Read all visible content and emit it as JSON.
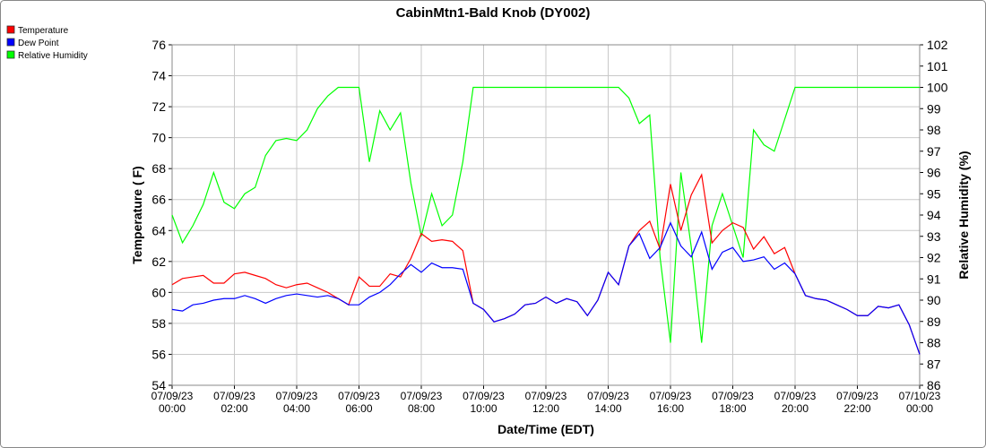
{
  "chart_data": {
    "type": "line",
    "title": "CabinMtn1-Bald Knob (DY002)",
    "x_label": "Date/Time (EDT)",
    "y_label": "Temperature ( F)",
    "y2_label": "Relative Humidity (%)",
    "x": [
      0,
      20,
      40,
      60,
      80,
      100,
      120,
      140,
      160,
      180,
      200,
      220,
      240,
      260,
      280,
      300,
      320,
      340,
      360,
      380,
      400,
      420,
      440,
      460,
      480,
      500,
      520,
      540,
      560,
      580,
      600,
      620,
      640,
      660,
      680,
      700,
      720,
      740,
      760,
      780,
      800,
      820,
      840,
      860,
      880,
      900,
      920,
      940,
      960,
      980,
      1000,
      1020,
      1040,
      1060,
      1080,
      1100,
      1120,
      1140,
      1160,
      1180,
      1200,
      1220,
      1240,
      1260,
      1280,
      1300,
      1320,
      1340,
      1360,
      1380,
      1400,
      1420,
      1440
    ],
    "xlim": [
      0,
      1440
    ],
    "xticks": [
      {
        "value": 0,
        "label": "07/09/23 00:00"
      },
      {
        "value": 120,
        "label": "07/09/23 02:00"
      },
      {
        "value": 240,
        "label": "07/09/23 04:00"
      },
      {
        "value": 360,
        "label": "07/09/23 06:00"
      },
      {
        "value": 480,
        "label": "07/09/23 08:00"
      },
      {
        "value": 600,
        "label": "07/09/23 10:00"
      },
      {
        "value": 720,
        "label": "07/09/23 12:00"
      },
      {
        "value": 840,
        "label": "07/09/23 14:00"
      },
      {
        "value": 960,
        "label": "07/09/23 16:00"
      },
      {
        "value": 1080,
        "label": "07/09/23 18:00"
      },
      {
        "value": 1200,
        "label": "07/09/23 20:00"
      },
      {
        "value": 1320,
        "label": "07/09/23 22:00"
      },
      {
        "value": 1440,
        "label": "07/10/23 00:00"
      }
    ],
    "ylim": [
      54,
      76
    ],
    "yticks": [
      54,
      56,
      58,
      60,
      62,
      64,
      66,
      68,
      70,
      72,
      74,
      76
    ],
    "y2lim": [
      86,
      102
    ],
    "y2ticks": [
      86,
      87,
      88,
      89,
      90,
      91,
      92,
      93,
      94,
      95,
      96,
      97,
      98,
      99,
      100,
      101,
      102
    ],
    "grid": true,
    "legend": "top-left",
    "series": [
      {
        "name": "Temperature",
        "color": "#ff0000",
        "values": [
          60.5,
          60.9,
          61.0,
          61.1,
          60.6,
          60.6,
          61.2,
          61.3,
          61.1,
          60.9,
          60.5,
          60.3,
          60.5,
          60.6,
          60.3,
          60.0,
          59.6,
          59.2,
          61.0,
          60.4,
          60.4,
          61.2,
          61.0,
          62.2,
          63.8,
          63.3,
          63.4,
          63.3,
          62.7,
          59.3,
          58.9,
          58.1,
          58.3,
          58.6,
          59.2,
          59.3,
          59.7,
          59.3,
          59.6,
          59.4,
          58.5,
          59.5,
          61.3,
          60.5,
          63.0,
          64.0,
          64.6,
          62.8,
          67.0,
          64.0,
          66.3,
          67.6,
          63.2,
          64.0,
          64.5,
          64.2,
          62.8,
          63.6,
          62.5,
          62.9,
          61.2,
          59.8,
          59.6,
          59.5,
          59.2,
          58.9,
          58.5,
          58.5,
          59.1,
          59.0,
          59.2,
          57.9,
          56.0
        ]
      },
      {
        "name": "Dew Point",
        "color": "#0000ff",
        "values": [
          58.9,
          58.8,
          59.2,
          59.3,
          59.5,
          59.6,
          59.6,
          59.8,
          59.6,
          59.3,
          59.6,
          59.8,
          59.9,
          59.8,
          59.7,
          59.8,
          59.6,
          59.2,
          59.2,
          59.7,
          60.0,
          60.5,
          61.2,
          61.8,
          61.3,
          61.9,
          61.6,
          61.6,
          61.5,
          59.3,
          58.9,
          58.1,
          58.3,
          58.6,
          59.2,
          59.3,
          59.7,
          59.3,
          59.6,
          59.4,
          58.5,
          59.5,
          61.3,
          60.5,
          63.0,
          63.8,
          62.2,
          62.9,
          64.5,
          63.0,
          62.3,
          63.9,
          61.5,
          62.6,
          62.9,
          62.0,
          62.1,
          62.3,
          61.5,
          61.9,
          61.2,
          59.8,
          59.6,
          59.5,
          59.2,
          58.9,
          58.5,
          58.5,
          59.1,
          59.0,
          59.2,
          57.9,
          56.0
        ]
      },
      {
        "name": "Relative Humidity",
        "color": "#00ff00",
        "axis": "y2",
        "values": [
          94.0,
          92.7,
          93.5,
          94.5,
          96.0,
          94.6,
          94.3,
          95.0,
          95.3,
          96.8,
          97.5,
          97.6,
          97.5,
          98.0,
          99.0,
          99.6,
          100,
          100,
          100,
          96.5,
          98.9,
          98.0,
          98.8,
          95.5,
          93.0,
          95.0,
          93.5,
          94.0,
          96.5,
          100,
          100,
          100,
          100,
          100,
          100,
          100,
          100,
          100,
          100,
          100,
          100,
          100,
          100,
          100,
          99.5,
          98.3,
          98.7,
          92.0,
          88.0,
          96.0,
          92.5,
          88.0,
          93.5,
          95.0,
          93.5,
          92.0,
          98.0,
          97.3,
          97.0,
          98.5,
          100,
          100,
          100,
          100,
          100,
          100,
          100,
          100,
          100,
          100,
          100,
          100,
          100
        ]
      }
    ]
  }
}
